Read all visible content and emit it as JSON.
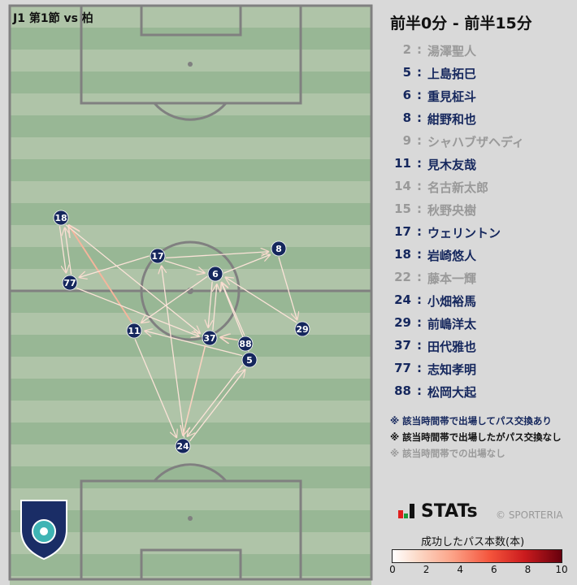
{
  "title": "J1 第1節 vs 柏",
  "period": "前半0分 - 前半15分",
  "roster": [
    {
      "num": "2",
      "name": "湯澤聖人",
      "status": "absent"
    },
    {
      "num": "5",
      "name": "上島拓巳",
      "status": "passed"
    },
    {
      "num": "6",
      "name": "重見柾斗",
      "status": "passed"
    },
    {
      "num": "8",
      "name": "紺野和也",
      "status": "passed"
    },
    {
      "num": "9",
      "name": "シャハブザヘディ",
      "status": "absent"
    },
    {
      "num": "11",
      "name": "見木友哉",
      "status": "passed"
    },
    {
      "num": "14",
      "name": "名古新太郎",
      "status": "absent"
    },
    {
      "num": "15",
      "name": "秋野央樹",
      "status": "absent"
    },
    {
      "num": "17",
      "name": "ウェリントン",
      "status": "passed"
    },
    {
      "num": "18",
      "name": "岩崎悠人",
      "status": "passed"
    },
    {
      "num": "22",
      "name": "藤本一輝",
      "status": "absent"
    },
    {
      "num": "24",
      "name": "小畑裕馬",
      "status": "passed"
    },
    {
      "num": "29",
      "name": "前嶋洋太",
      "status": "passed"
    },
    {
      "num": "37",
      "name": "田代雅也",
      "status": "passed"
    },
    {
      "num": "77",
      "name": "志知孝明",
      "status": "passed"
    },
    {
      "num": "88",
      "name": "松岡大起",
      "status": "passed"
    }
  ],
  "legend_notes": [
    "※ 該当時間帯で出場してパス交換あり",
    "※ 該当時間帯で出場したがパス交換なし",
    "※ 該当時間帯での出場なし"
  ],
  "brand": "STATs",
  "copyright": "© SPORTERIA",
  "colorbar": {
    "title": "成功したパス本数(本)",
    "ticks": [
      "0",
      "2",
      "4",
      "6",
      "8",
      "10"
    ],
    "min": 0,
    "max": 10
  },
  "colors": {
    "navy": "#15275d",
    "gray": "#999999",
    "pitch_light": "#afc4a8",
    "pitch_dark": "#98b795"
  },
  "players_on_pitch": [
    "18",
    "77",
    "17",
    "6",
    "8",
    "11",
    "37",
    "88",
    "5",
    "29",
    "24"
  ],
  "passes": [
    {
      "from": "18",
      "to": "77",
      "count": 1
    },
    {
      "from": "77",
      "to": "18",
      "count": 1
    },
    {
      "from": "11",
      "to": "18",
      "count": 3
    },
    {
      "from": "18",
      "to": "37",
      "count": 1
    },
    {
      "from": "17",
      "to": "77",
      "count": 1
    },
    {
      "from": "77",
      "to": "37",
      "count": 1
    },
    {
      "from": "17",
      "to": "6",
      "count": 1
    },
    {
      "from": "17",
      "to": "8",
      "count": 1
    },
    {
      "from": "6",
      "to": "8",
      "count": 1
    },
    {
      "from": "6",
      "to": "11",
      "count": 1
    },
    {
      "from": "6",
      "to": "37",
      "count": 1
    },
    {
      "from": "37",
      "to": "6",
      "count": 1
    },
    {
      "from": "88",
      "to": "6",
      "count": 1
    },
    {
      "from": "5",
      "to": "11",
      "count": 1
    },
    {
      "from": "88",
      "to": "37",
      "count": 2
    },
    {
      "from": "8",
      "to": "29",
      "count": 1
    },
    {
      "from": "29",
      "to": "6",
      "count": 1
    },
    {
      "from": "24",
      "to": "17",
      "count": 1
    },
    {
      "from": "37",
      "to": "24",
      "count": 2
    },
    {
      "from": "11",
      "to": "24",
      "count": 1
    },
    {
      "from": "24",
      "to": "5",
      "count": 1
    },
    {
      "from": "5",
      "to": "24",
      "count": 1
    },
    {
      "from": "5",
      "to": "6",
      "count": 1
    }
  ]
}
